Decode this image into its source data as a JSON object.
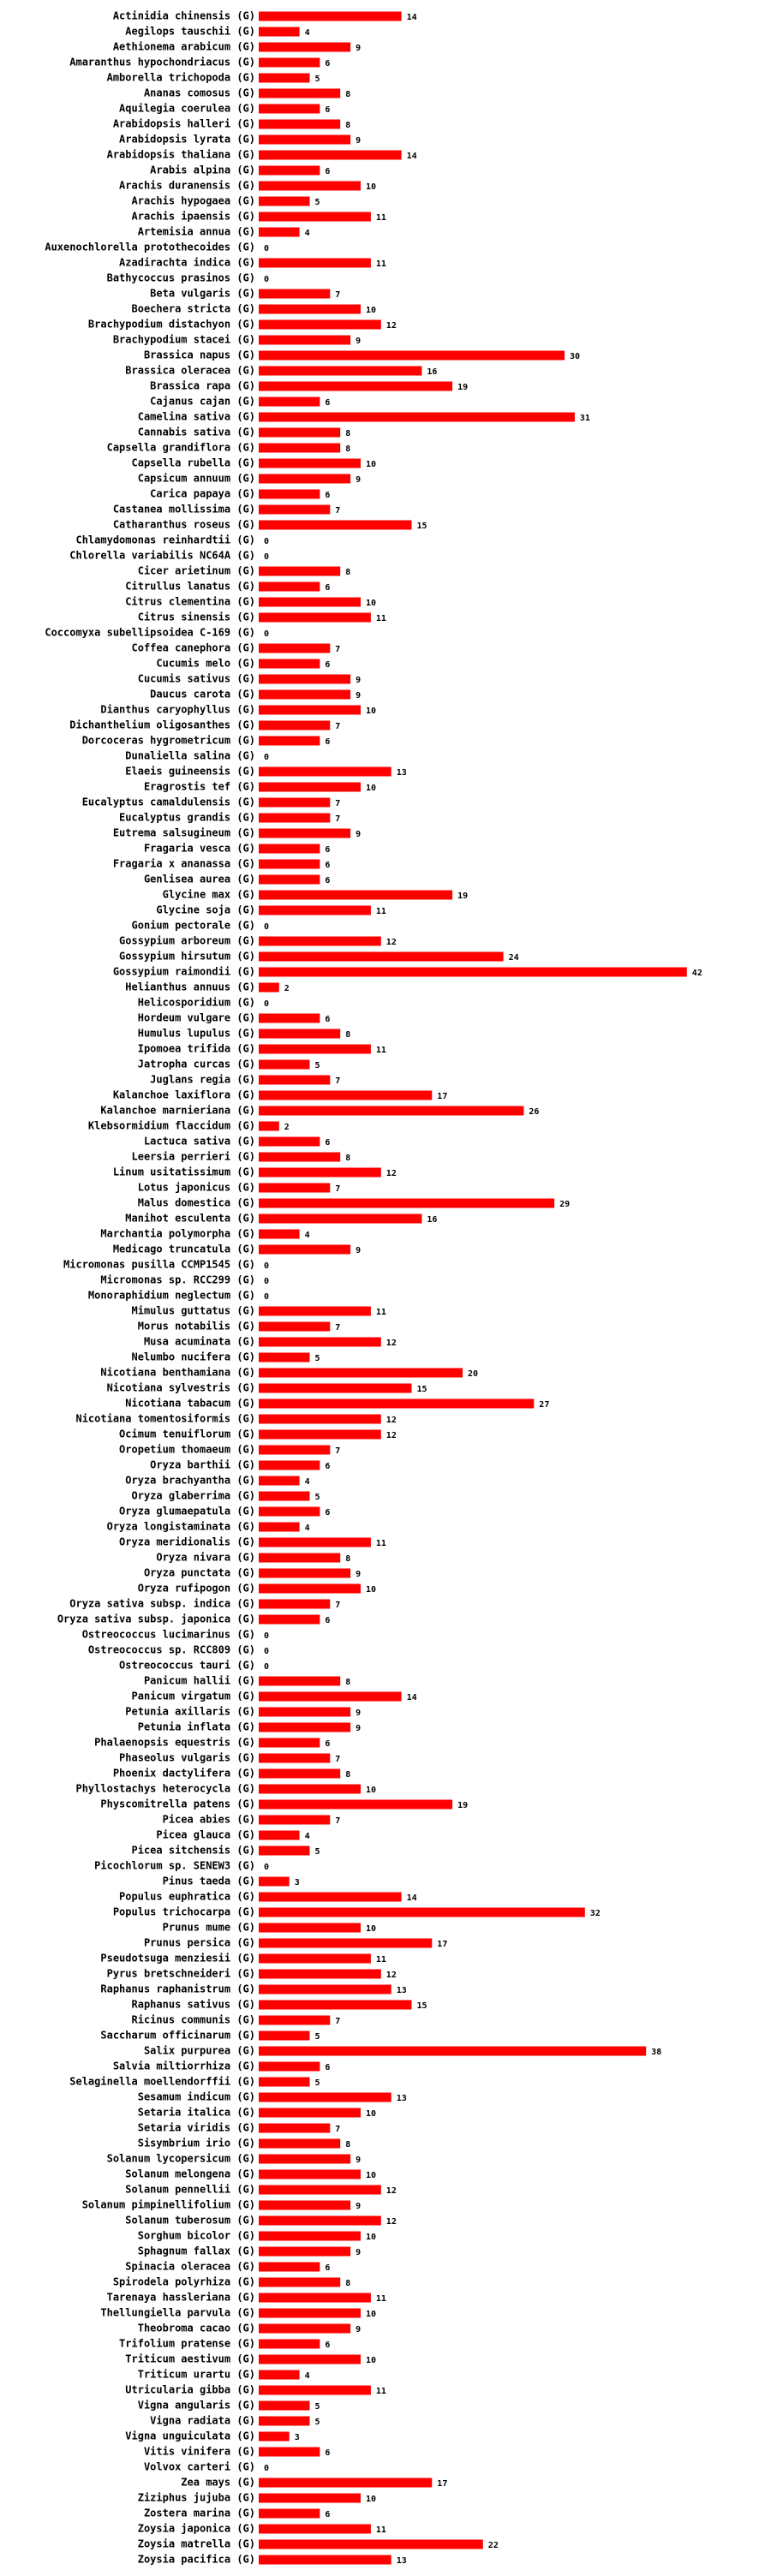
{
  "chart_data": {
    "type": "bar",
    "orientation": "horizontal",
    "color": "#ff0000",
    "categories": [
      "Actinidia chinensis (G)",
      "Aegilops tauschii (G)",
      "Aethionema arabicum (G)",
      "Amaranthus hypochondriacus (G)",
      "Amborella trichopoda (G)",
      "Ananas comosus (G)",
      "Aquilegia coerulea (G)",
      "Arabidopsis halleri (G)",
      "Arabidopsis lyrata (G)",
      "Arabidopsis thaliana (G)",
      "Arabis alpina (G)",
      "Arachis duranensis (G)",
      "Arachis hypogaea (G)",
      "Arachis ipaensis (G)",
      "Artemisia annua (G)",
      "Auxenochlorella protothecoides (G)",
      "Azadirachta indica (G)",
      "Bathycoccus prasinos (G)",
      "Beta vulgaris (G)",
      "Boechera stricta (G)",
      "Brachypodium distachyon (G)",
      "Brachypodium stacei (G)",
      "Brassica napus (G)",
      "Brassica oleracea (G)",
      "Brassica rapa (G)",
      "Cajanus cajan (G)",
      "Camelina sativa (G)",
      "Cannabis sativa (G)",
      "Capsella grandiflora (G)",
      "Capsella rubella (G)",
      "Capsicum annuum (G)",
      "Carica papaya (G)",
      "Castanea mollissima (G)",
      "Catharanthus roseus (G)",
      "Chlamydomonas reinhardtii (G)",
      "Chlorella variabilis NC64A (G)",
      "Cicer arietinum (G)",
      "Citrullus lanatus (G)",
      "Citrus clementina (G)",
      "Citrus sinensis (G)",
      "Coccomyxa subellipsoidea C-169 (G)",
      "Coffea canephora (G)",
      "Cucumis melo (G)",
      "Cucumis sativus (G)",
      "Daucus carota (G)",
      "Dianthus caryophyllus (G)",
      "Dichanthelium oligosanthes (G)",
      "Dorcoceras hygrometricum (G)",
      "Dunaliella salina (G)",
      "Elaeis guineensis (G)",
      "Eragrostis tef (G)",
      "Eucalyptus camaldulensis (G)",
      "Eucalyptus grandis (G)",
      "Eutrema salsugineum (G)",
      "Fragaria vesca (G)",
      "Fragaria x ananassa (G)",
      "Genlisea aurea (G)",
      "Glycine max (G)",
      "Glycine soja (G)",
      "Gonium pectorale (G)",
      "Gossypium arboreum (G)",
      "Gossypium hirsutum (G)",
      "Gossypium raimondii (G)",
      "Helianthus annuus (G)",
      "Helicosporidium (G)",
      "Hordeum vulgare (G)",
      "Humulus lupulus (G)",
      "Ipomoea trifida (G)",
      "Jatropha curcas (G)",
      "Juglans regia (G)",
      "Kalanchoe laxiflora (G)",
      "Kalanchoe marnieriana (G)",
      "Klebsormidium flaccidum (G)",
      "Lactuca sativa (G)",
      "Leersia perrieri (G)",
      "Linum usitatissimum (G)",
      "Lotus japonicus (G)",
      "Malus domestica (G)",
      "Manihot esculenta (G)",
      "Marchantia polymorpha (G)",
      "Medicago truncatula (G)",
      "Micromonas pusilla CCMP1545 (G)",
      "Micromonas sp. RCC299 (G)",
      "Monoraphidium neglectum (G)",
      "Mimulus guttatus (G)",
      "Morus notabilis (G)",
      "Musa acuminata (G)",
      "Nelumbo nucifera (G)",
      "Nicotiana benthamiana (G)",
      "Nicotiana sylvestris (G)",
      "Nicotiana tabacum (G)",
      "Nicotiana tomentosiformis (G)",
      "Ocimum tenuiflorum (G)",
      "Oropetium thomaeum (G)",
      "Oryza barthii (G)",
      "Oryza brachyantha (G)",
      "Oryza glaberrima (G)",
      "Oryza glumaepatula (G)",
      "Oryza longistaminata (G)",
      "Oryza meridionalis (G)",
      "Oryza nivara (G)",
      "Oryza punctata (G)",
      "Oryza rufipogon (G)",
      "Oryza sativa subsp. indica (G)",
      "Oryza sativa subsp. japonica (G)",
      "Ostreococcus lucimarinus (G)",
      "Ostreococcus sp. RCC809 (G)",
      "Ostreococcus tauri (G)",
      "Panicum hallii (G)",
      "Panicum virgatum (G)",
      "Petunia axillaris (G)",
      "Petunia inflata (G)",
      "Phalaenopsis equestris (G)",
      "Phaseolus vulgaris (G)",
      "Phoenix dactylifera (G)",
      "Phyllostachys heterocycla (G)",
      "Physcomitrella patens (G)",
      "Picea abies (G)",
      "Picea glauca (G)",
      "Picea sitchensis (G)",
      "Picochlorum sp. SENEW3 (G)",
      "Pinus taeda (G)",
      "Populus euphratica (G)",
      "Populus trichocarpa (G)",
      "Prunus mume (G)",
      "Prunus persica (G)",
      "Pseudotsuga menziesii (G)",
      "Pyrus bretschneideri (G)",
      "Raphanus raphanistrum (G)",
      "Raphanus sativus (G)",
      "Ricinus communis (G)",
      "Saccharum officinarum (G)",
      "Salix purpurea (G)",
      "Salvia miltiorrhiza (G)",
      "Selaginella moellendorffii (G)",
      "Sesamum indicum (G)",
      "Setaria italica (G)",
      "Setaria viridis (G)",
      "Sisymbrium irio (G)",
      "Solanum lycopersicum (G)",
      "Solanum melongena (G)",
      "Solanum pennellii (G)",
      "Solanum pimpinellifolium (G)",
      "Solanum tuberosum (G)",
      "Sorghum bicolor (G)",
      "Sphagnum fallax (G)",
      "Spinacia oleracea (G)",
      "Spirodela polyrhiza (G)",
      "Tarenaya hassleriana (G)",
      "Thellungiella parvula (G)",
      "Theobroma cacao (G)",
      "Trifolium pratense (G)",
      "Triticum aestivum (G)",
      "Triticum urartu (G)",
      "Utricularia gibba (G)",
      "Vigna angularis (G)",
      "Vigna radiata (G)",
      "Vigna unguiculata (G)",
      "Vitis vinifera (G)",
      "Volvox carteri (G)",
      "Zea mays (G)",
      "Ziziphus jujuba (G)",
      "Zostera marina (G)",
      "Zoysia japonica (G)",
      "Zoysia matrella (G)",
      "Zoysia pacifica (G)"
    ],
    "values": [
      14,
      4,
      9,
      6,
      5,
      8,
      6,
      8,
      9,
      14,
      6,
      10,
      5,
      11,
      4,
      0,
      11,
      0,
      7,
      10,
      12,
      9,
      30,
      16,
      19,
      6,
      31,
      8,
      8,
      10,
      9,
      6,
      7,
      15,
      0,
      0,
      8,
      6,
      10,
      11,
      0,
      7,
      6,
      9,
      9,
      10,
      7,
      6,
      0,
      13,
      10,
      7,
      7,
      9,
      6,
      6,
      6,
      19,
      11,
      0,
      12,
      24,
      42,
      2,
      0,
      6,
      8,
      11,
      5,
      7,
      17,
      26,
      2,
      6,
      8,
      12,
      7,
      29,
      16,
      4,
      9,
      0,
      0,
      0,
      11,
      7,
      12,
      5,
      20,
      15,
      27,
      12,
      12,
      7,
      6,
      4,
      5,
      6,
      4,
      11,
      8,
      9,
      10,
      7,
      6,
      0,
      0,
      0,
      8,
      14,
      9,
      9,
      6,
      7,
      8,
      10,
      19,
      7,
      4,
      5,
      0,
      3,
      14,
      32,
      10,
      17,
      11,
      12,
      13,
      15,
      7,
      5,
      38,
      6,
      5,
      13,
      10,
      7,
      8,
      9,
      10,
      12,
      9,
      12,
      10,
      9,
      6,
      8,
      11,
      10,
      9,
      6,
      10,
      4,
      11,
      5,
      5,
      3,
      6,
      0,
      17,
      10,
      6,
      11,
      22,
      13
    ]
  }
}
